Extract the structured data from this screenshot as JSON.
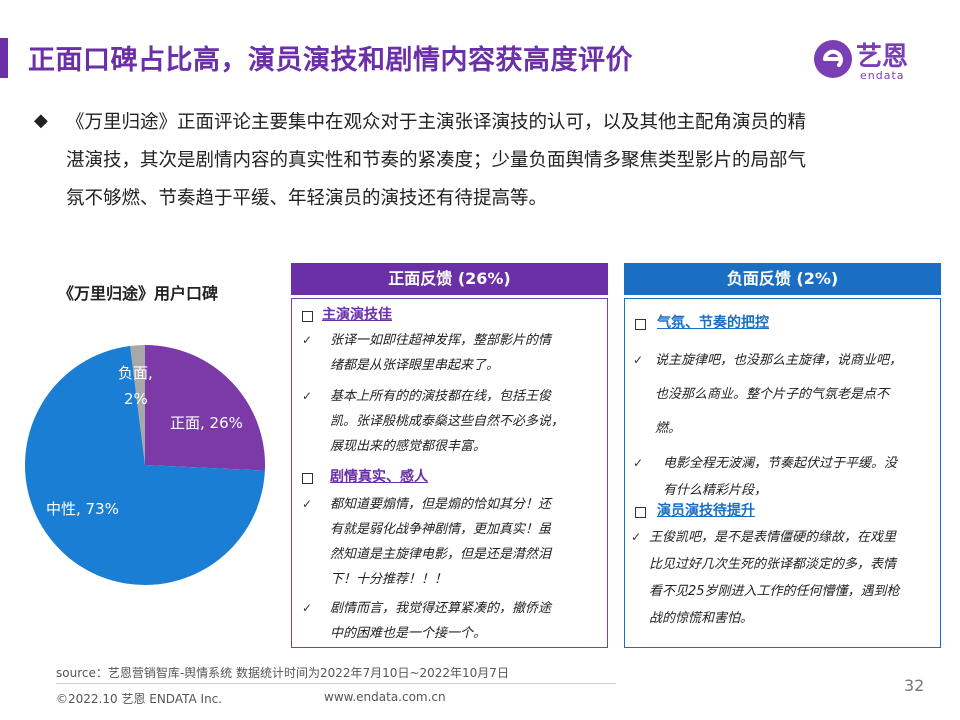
{
  "title": "正面口碑占比高，演员演技和剧情内容获高度评价",
  "logo": {
    "cn": "艺恩",
    "en": "endata"
  },
  "bullet": {
    "line1": "《万里归途》正面评论主要集中在观众对于主演张译演技的认可，以及其他主配角演员的精",
    "line2": "湛演技，其次是剧情内容的真实性和节奏的紧凑度；少量负面舆情多聚焦类型影片的局部气",
    "line3": "氛不够燃、节奏趋于平缓、年轻演员的演技还有待提高等。"
  },
  "chart_data": {
    "type": "pie",
    "title": "《万里归途》用户口碑",
    "slices": [
      {
        "label": "正面",
        "value": 26,
        "display": "正面, 26%",
        "color": "#7b3aa8"
      },
      {
        "label": "中性",
        "value": 73,
        "display": "中性, 73%",
        "color": "#1a7fd4"
      },
      {
        "label": "负面",
        "value": 2,
        "display_a": "负面,",
        "display_b": "2%",
        "color": "#a8a8a8"
      }
    ]
  },
  "positive": {
    "header": "正面反馈 (26%)",
    "sec1": "主演演技佳",
    "p1a": "张译一如即往超神发挥，整部影片的情",
    "p1b": "绪都是从张译眼里串起来了。",
    "p2a": "基本上所有的的演技都在线，包括王俊",
    "p2b": "凯。张译殷桃成泰燊这些自然不必多说，",
    "p2c": "展现出来的感觉都很丰富。",
    "sec2": "剧情真实、感人",
    "p3a": "都知道要煽情，但是煽的恰如其分！还",
    "p3b": "有就是弱化战争神剧情，更加真实！虽",
    "p3c": "然知道是主旋律电影，但是还是潸然泪",
    "p3d": "下！十分推荐！！！",
    "p4a": "剧情而言，我觉得还算紧凑的，撤侨途",
    "p4b": "中的困难也是一个接一个。"
  },
  "negative": {
    "header": "负面反馈 (2%)",
    "sec1": "气氛、节奏的把控",
    "n1a": "说主旋律吧，也没那么主旋律，说商业吧，",
    "n1b": "也没那么商业。整个片子的气氛老是点不",
    "n1c": "燃。",
    "n2a": "电影全程无波澜，节奏起伏过于平缓。没",
    "n2b": "有什么精彩片段，",
    "sec2": "演员演技待提升",
    "n3a": "王俊凯吧，是不是表情僵硬的缘故，在戏里",
    "n3b": "比见过好几次生死的张译都淡定的多，表情",
    "n3c": "看不见25岁刚进入工作的任何懵懂，遇到枪",
    "n3d": "战的惊慌和害怕。"
  },
  "footer": {
    "source": "source：艺恩营销智库-舆情系统      数据统计时间为2022年7月10日~2022年10月7日",
    "copyright": "©2022.10 艺恩 ENDATA Inc.",
    "url": "www.endata.com.cn",
    "page": "32"
  }
}
